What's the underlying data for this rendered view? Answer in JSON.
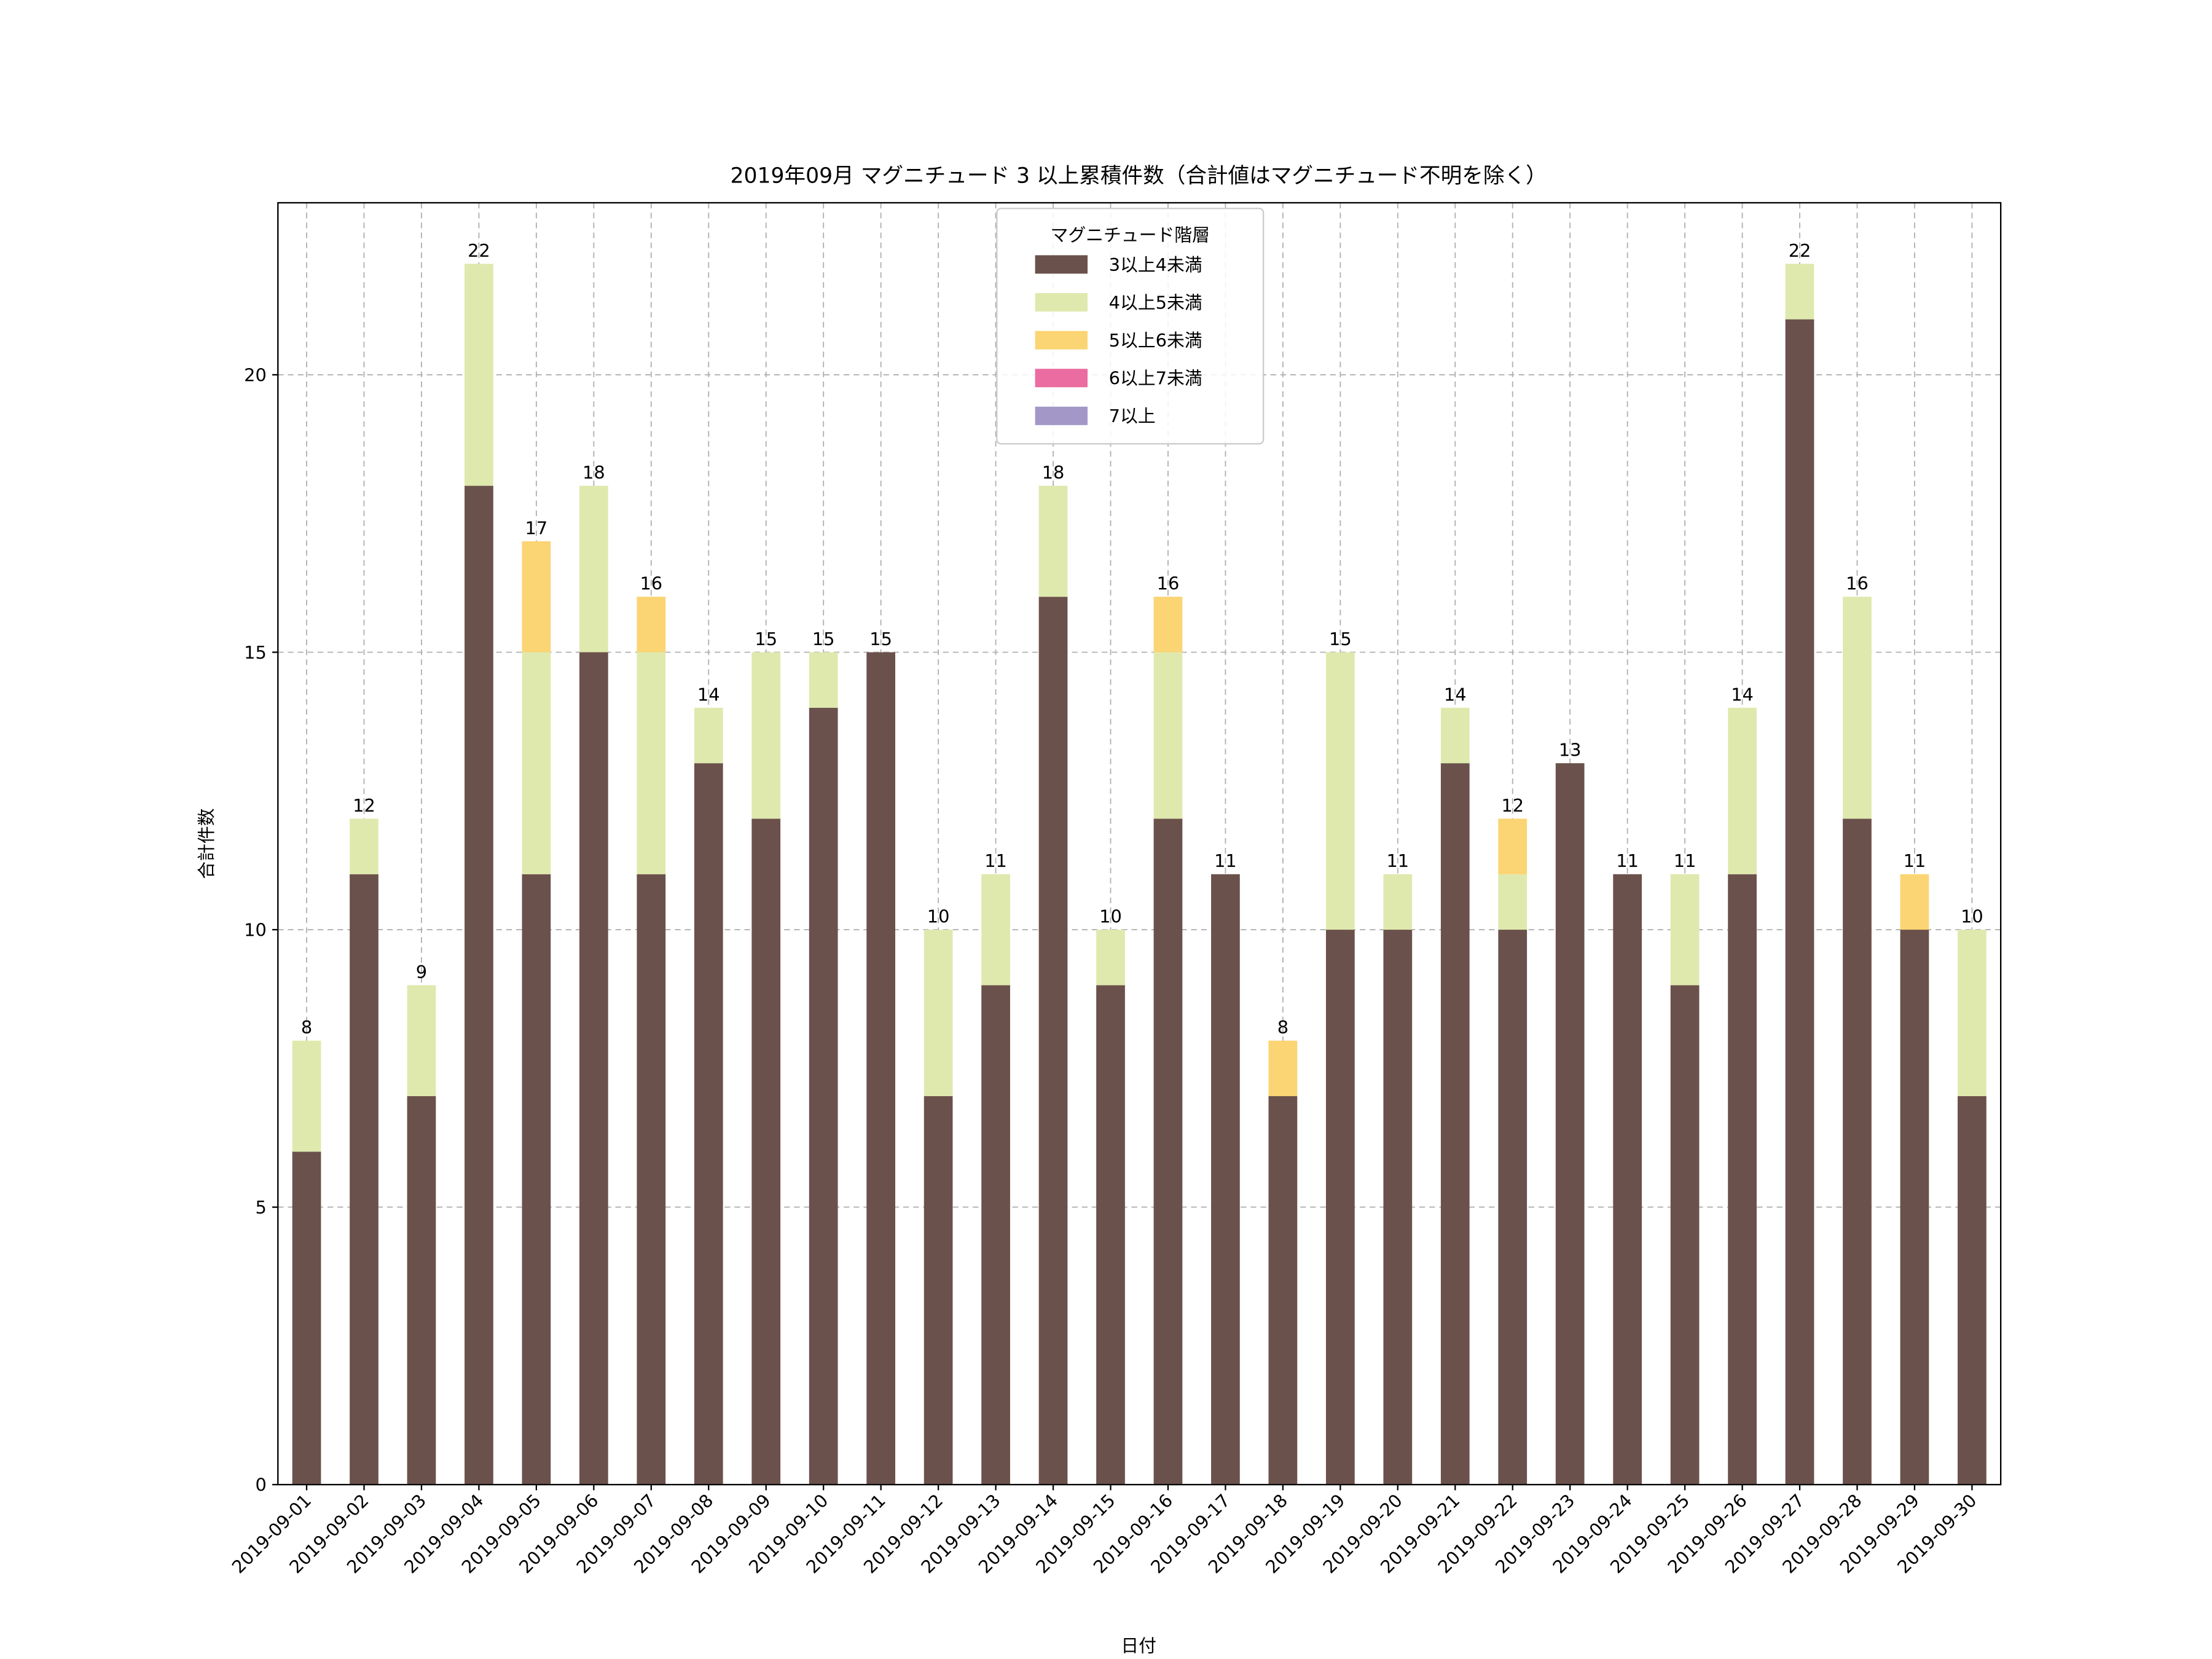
{
  "chart_data": {
    "type": "bar",
    "stacked": true,
    "title": "2019年09月 マグニチュード 3 以上累積件数（合計値はマグニチュード不明を除く）",
    "xlabel": "日付",
    "ylabel": "合計件数",
    "ylim": [
      0,
      23.1
    ],
    "yticks": [
      0,
      5,
      10,
      15,
      20
    ],
    "grid": true,
    "legend": {
      "title": "マグニチュード階層",
      "placement": "top-center"
    },
    "categories": [
      "2019-09-01",
      "2019-09-02",
      "2019-09-03",
      "2019-09-04",
      "2019-09-05",
      "2019-09-06",
      "2019-09-07",
      "2019-09-08",
      "2019-09-09",
      "2019-09-10",
      "2019-09-11",
      "2019-09-12",
      "2019-09-13",
      "2019-09-14",
      "2019-09-15",
      "2019-09-16",
      "2019-09-17",
      "2019-09-18",
      "2019-09-19",
      "2019-09-20",
      "2019-09-21",
      "2019-09-22",
      "2019-09-23",
      "2019-09-24",
      "2019-09-25",
      "2019-09-26",
      "2019-09-27",
      "2019-09-28",
      "2019-09-29",
      "2019-09-30"
    ],
    "series": [
      {
        "name": "3以上4未満",
        "color": "#6b514b",
        "values": [
          6,
          11,
          7,
          18,
          11,
          15,
          11,
          13,
          12,
          14,
          15,
          7,
          9,
          16,
          9,
          12,
          11,
          7,
          10,
          10,
          13,
          10,
          13,
          11,
          9,
          11,
          21,
          12,
          10,
          7
        ]
      },
      {
        "name": "4以上5未満",
        "color": "#dfe9ae",
        "values": [
          2,
          1,
          2,
          4,
          4,
          3,
          4,
          1,
          3,
          1,
          0,
          3,
          2,
          2,
          1,
          3,
          0,
          0,
          5,
          1,
          1,
          1,
          0,
          0,
          2,
          3,
          1,
          4,
          0,
          3
        ]
      },
      {
        "name": "5以上6未満",
        "color": "#fbd473",
        "values": [
          0,
          0,
          0,
          0,
          2,
          0,
          1,
          0,
          0,
          0,
          0,
          0,
          0,
          0,
          0,
          1,
          0,
          1,
          0,
          0,
          0,
          1,
          0,
          0,
          0,
          0,
          0,
          0,
          1,
          0
        ]
      },
      {
        "name": "6以上7未満",
        "color": "#ea6ca0",
        "values": [
          0,
          0,
          0,
          0,
          0,
          0,
          0,
          0,
          0,
          0,
          0,
          0,
          0,
          0,
          0,
          0,
          0,
          0,
          0,
          0,
          0,
          0,
          0,
          0,
          0,
          0,
          0,
          0,
          0,
          0
        ]
      },
      {
        "name": "7以上",
        "color": "#a397c8",
        "values": [
          0,
          0,
          0,
          0,
          0,
          0,
          0,
          0,
          0,
          0,
          0,
          0,
          0,
          0,
          0,
          0,
          0,
          0,
          0,
          0,
          0,
          0,
          0,
          0,
          0,
          0,
          0,
          0,
          0,
          0
        ]
      }
    ],
    "totals": [
      8,
      12,
      9,
      22,
      17,
      18,
      16,
      14,
      15,
      15,
      15,
      10,
      11,
      18,
      10,
      16,
      11,
      8,
      15,
      11,
      14,
      12,
      13,
      11,
      11,
      14,
      22,
      16,
      11,
      10
    ]
  }
}
